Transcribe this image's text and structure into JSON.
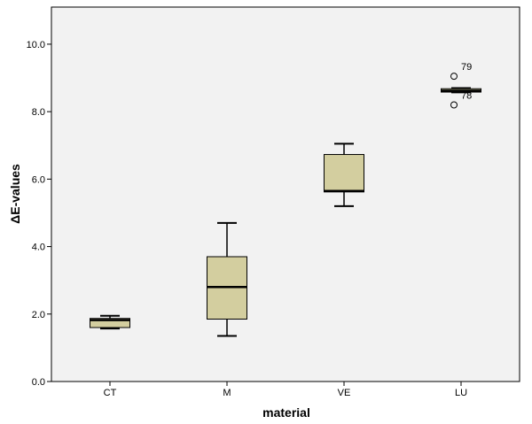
{
  "chart_data": {
    "type": "boxplot",
    "title": "",
    "xlabel": "material",
    "ylabel": "ΔE-values",
    "ylim": [
      0,
      11.1
    ],
    "yticks": [
      0.0,
      2.0,
      4.0,
      6.0,
      8.0,
      10.0
    ],
    "ytick_labels": [
      "0.0",
      "2.0",
      "4.0",
      "6.0",
      "8.0",
      "10.0"
    ],
    "grid": false,
    "categories": [
      "CT",
      "M",
      "VE",
      "LU"
    ],
    "boxes": [
      {
        "category": "CT",
        "whisker_low": 1.57,
        "q1": 1.6,
        "median": 1.82,
        "q3": 1.87,
        "whisker_high": 1.95,
        "outliers": []
      },
      {
        "category": "M",
        "whisker_low": 1.35,
        "q1": 1.85,
        "median": 2.8,
        "q3": 3.7,
        "whisker_high": 4.7,
        "outliers": []
      },
      {
        "category": "VE",
        "whisker_low": 5.2,
        "q1": 5.62,
        "median": 5.65,
        "q3": 6.73,
        "whisker_high": 7.05,
        "outliers": []
      },
      {
        "category": "LU",
        "whisker_low": 8.57,
        "q1": 8.58,
        "median": 8.62,
        "q3": 8.68,
        "whisker_high": 8.7,
        "outliers": [
          {
            "value": 9.05,
            "label": "79"
          },
          {
            "value": 8.2,
            "label": "78"
          }
        ]
      }
    ],
    "colors": {
      "box_fill": "#d3ce9f",
      "plot_background": "#f2f2f2",
      "stroke": "#000000"
    }
  }
}
